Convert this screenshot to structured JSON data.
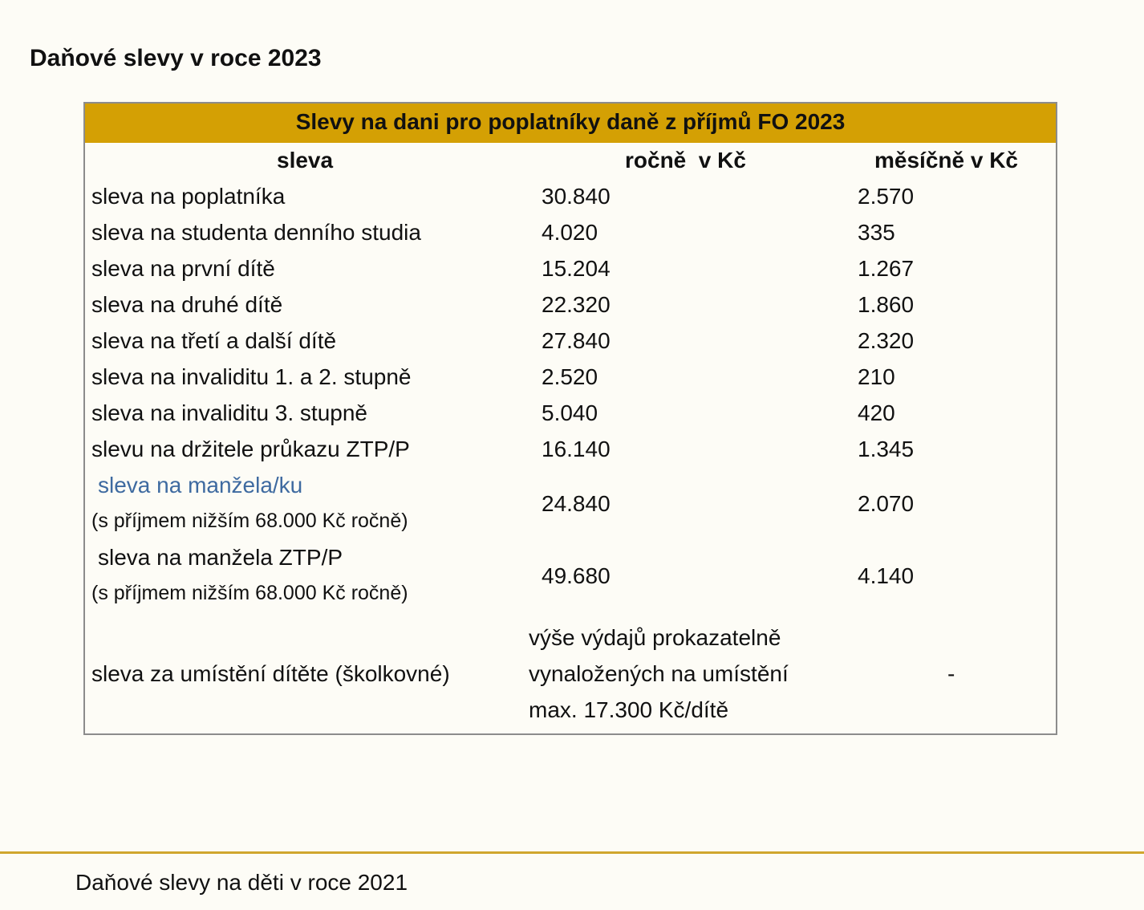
{
  "page_title": "Daňové slevy v roce 2023",
  "table": {
    "caption": "Slevy na dani pro poplatníky daně z příjmů FO 2023",
    "headers": [
      "sleva",
      "ročně  v Kč",
      "měsíčně v Kč"
    ],
    "rows": [
      {
        "label": "sleva na poplatníka",
        "yearly": "30.840",
        "monthly": "2.570"
      },
      {
        "label": "sleva na studenta denního studia",
        "yearly": "4.020",
        "monthly": "335"
      },
      {
        "label": "sleva na první dítě",
        "yearly": "15.204",
        "monthly": "1.267"
      },
      {
        "label": "sleva na druhé dítě",
        "yearly": "22.320",
        "monthly": "1.860"
      },
      {
        "label": "sleva na třetí a další dítě",
        "yearly": "27.840",
        "monthly": "2.320"
      },
      {
        "label": "sleva na invaliditu 1. a 2. stupně",
        "yearly": "2.520",
        "monthly": "210"
      },
      {
        "label": "sleva na invaliditu 3. stupně",
        "yearly": "5.040",
        "monthly": "420"
      },
      {
        "label": "slevu na držitele průkazu ZTP/P",
        "yearly": "16.140",
        "monthly": "1.345"
      }
    ],
    "spouse": {
      "label": "sleva na manžela/ku",
      "note": "(s příjmem nižším 68.000 Kč ročně)",
      "yearly": "24.840",
      "monthly": "2.070"
    },
    "spouse_ztp": {
      "label": "sleva na manžela ZTP/P",
      "note": "(s příjmem nižším 68.000 Kč ročně)",
      "yearly": "49.680",
      "monthly": "4.140"
    },
    "kindergarten": {
      "label": "sleva za umístění dítěte (školkovné)",
      "yearly_lines": [
        "výše výdajů prokazatelně",
        "vynaložených na umístění",
        "max. 17.300 Kč/dítě"
      ],
      "monthly": "-"
    }
  },
  "footer_link": "Daňové slevy na děti v roce 2021",
  "colors": {
    "caption_bg": "#d4a004",
    "link": "#3e6aa0",
    "footer_rule": "#d0a62e",
    "page_bg": "#fdfcf6"
  }
}
